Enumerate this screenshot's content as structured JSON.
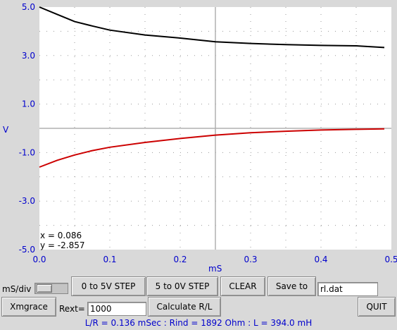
{
  "chart_data": {
    "type": "line",
    "xlabel": "mS",
    "ylabel": "V",
    "xlim": [
      0,
      0.5
    ],
    "ylim": [
      -5,
      5
    ],
    "x_ticks": [
      "0.0",
      "0.1",
      "0.2",
      "0.3",
      "0.4",
      "0.5"
    ],
    "y_ticks": [
      "5.0",
      "3.0",
      "1.0",
      "-1.0",
      "-3.0",
      "-5.0"
    ],
    "grid": true,
    "series": [
      {
        "color": "#000000",
        "x": [
          0,
          0.025,
          0.05,
          0.075,
          0.1,
          0.15,
          0.2,
          0.25,
          0.3,
          0.35,
          0.4,
          0.45,
          0.49
        ],
        "y": [
          5.0,
          4.7,
          4.4,
          4.22,
          4.05,
          3.85,
          3.72,
          3.57,
          3.5,
          3.45,
          3.42,
          3.4,
          3.33
        ]
      },
      {
        "color": "#cc0000",
        "x": [
          0,
          0.025,
          0.05,
          0.075,
          0.1,
          0.15,
          0.2,
          0.25,
          0.3,
          0.35,
          0.4,
          0.45,
          0.49
        ],
        "y": [
          -1.6,
          -1.32,
          -1.1,
          -0.92,
          -0.78,
          -0.58,
          -0.42,
          -0.28,
          -0.18,
          -0.12,
          -0.07,
          -0.04,
          -0.02
        ]
      }
    ]
  },
  "readout": {
    "x": "x = 0.086",
    "y": "y = -2.857"
  },
  "controls": {
    "msdiv_label": "mS/div",
    "step_up_label": "0 to 5V STEP",
    "step_down_label": "5 to 0V STEP",
    "clear_label": "CLEAR",
    "save_label": "Save to",
    "filename_value": "rl.dat",
    "xmgrace_label": "Xmgrace",
    "rext_label": "Rext=",
    "rext_value": "1000",
    "calculate_label": "Calculate R/L",
    "quit_label": "QUIT"
  },
  "result": "L/R = 0.136 mSec : Rind =  1892 Ohm : L = 394.0 mH"
}
